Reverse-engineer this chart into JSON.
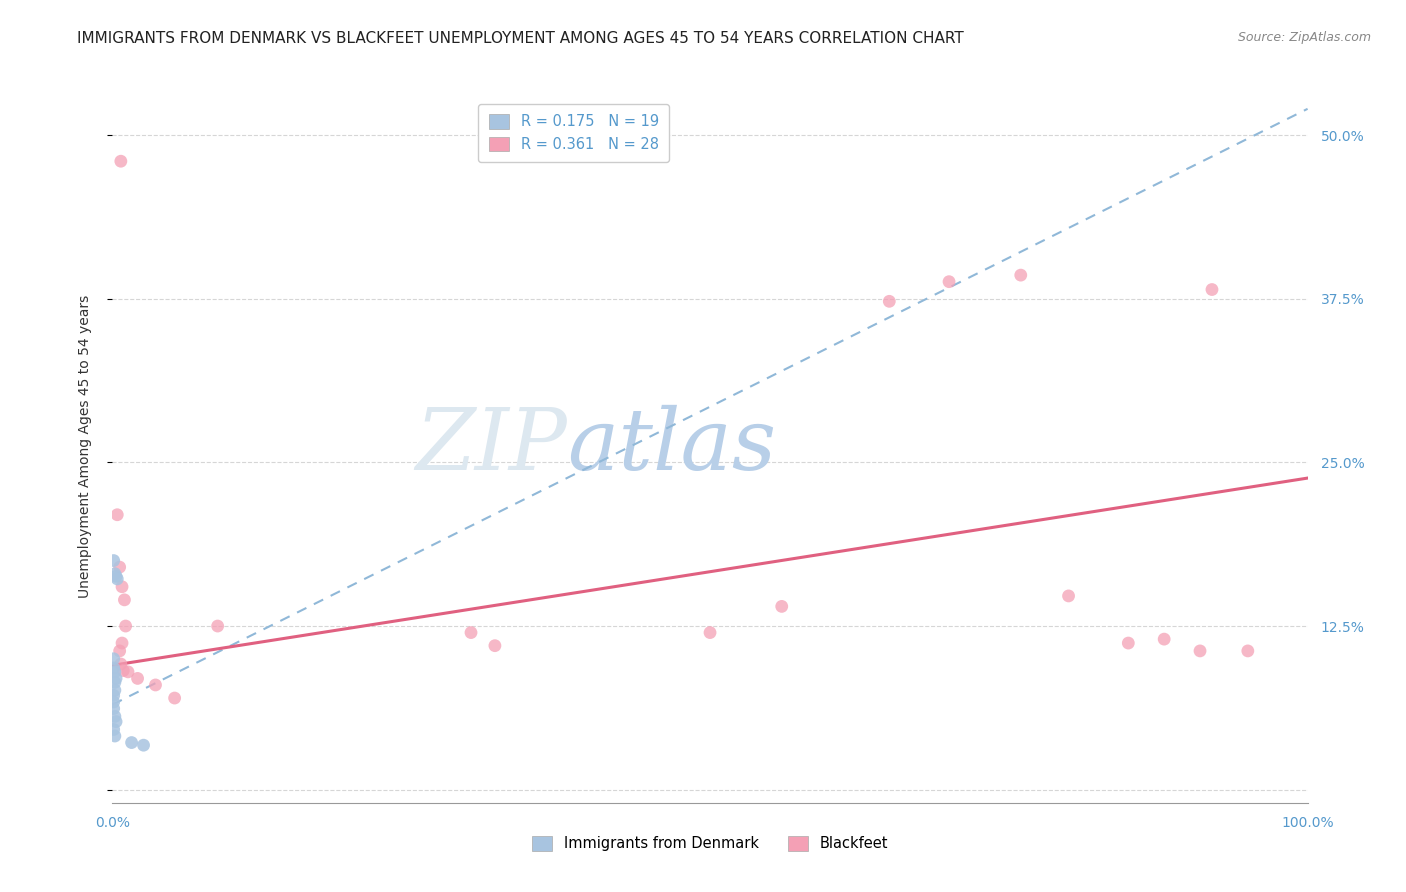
{
  "title": "IMMIGRANTS FROM DENMARK VS BLACKFEET UNEMPLOYMENT AMONG AGES 45 TO 54 YEARS CORRELATION CHART",
  "source": "Source: ZipAtlas.com",
  "ylabel": "Unemployment Among Ages 45 to 54 years",
  "ytick_values": [
    0.0,
    0.125,
    0.25,
    0.375,
    0.5
  ],
  "ytick_labels": [
    "",
    "12.5%",
    "25.0%",
    "37.5%",
    "50.0%"
  ],
  "xlim": [
    0.0,
    1.0
  ],
  "ylim": [
    -0.01,
    0.535
  ],
  "color_denmark": "#a8c4e0",
  "color_blackfeet": "#f4a0b5",
  "trendline_denmark_color": "#90b8d8",
  "trendline_blackfeet_color": "#e06080",
  "watermark_zip_color": "#d8e8f0",
  "watermark_atlas_color": "#b8d4e8",
  "denmark_scatter": [
    [
      0.001,
      0.175
    ],
    [
      0.002,
      0.165
    ],
    [
      0.003,
      0.163
    ],
    [
      0.004,
      0.161
    ],
    [
      0.001,
      0.1
    ],
    [
      0.001,
      0.093
    ],
    [
      0.002,
      0.09
    ],
    [
      0.002,
      0.082
    ],
    [
      0.003,
      0.085
    ],
    [
      0.002,
      0.076
    ],
    [
      0.001,
      0.072
    ],
    [
      0.001,
      0.067
    ],
    [
      0.001,
      0.062
    ],
    [
      0.002,
      0.056
    ],
    [
      0.003,
      0.052
    ],
    [
      0.001,
      0.046
    ],
    [
      0.002,
      0.041
    ],
    [
      0.016,
      0.036
    ],
    [
      0.026,
      0.034
    ]
  ],
  "blackfeet_scatter": [
    [
      0.007,
      0.48
    ],
    [
      0.004,
      0.21
    ],
    [
      0.006,
      0.17
    ],
    [
      0.008,
      0.155
    ],
    [
      0.01,
      0.145
    ],
    [
      0.011,
      0.125
    ],
    [
      0.008,
      0.112
    ],
    [
      0.006,
      0.106
    ],
    [
      0.007,
      0.096
    ],
    [
      0.009,
      0.091
    ],
    [
      0.013,
      0.09
    ],
    [
      0.021,
      0.085
    ],
    [
      0.036,
      0.08
    ],
    [
      0.052,
      0.07
    ],
    [
      0.088,
      0.125
    ],
    [
      0.3,
      0.12
    ],
    [
      0.32,
      0.11
    ],
    [
      0.5,
      0.12
    ],
    [
      0.56,
      0.14
    ],
    [
      0.65,
      0.373
    ],
    [
      0.7,
      0.388
    ],
    [
      0.76,
      0.393
    ],
    [
      0.8,
      0.148
    ],
    [
      0.85,
      0.112
    ],
    [
      0.88,
      0.115
    ],
    [
      0.91,
      0.106
    ],
    [
      0.92,
      0.382
    ],
    [
      0.95,
      0.106
    ]
  ],
  "denmark_trend_x": [
    0.0,
    1.0
  ],
  "denmark_trend_y": [
    0.065,
    0.52
  ],
  "blackfeet_trend_x": [
    0.0,
    1.0
  ],
  "blackfeet_trend_y": [
    0.095,
    0.238
  ],
  "marker_size": 85,
  "grid_color": "#cccccc",
  "title_fontsize": 11,
  "axis_fontsize": 10,
  "tick_fontsize": 10
}
